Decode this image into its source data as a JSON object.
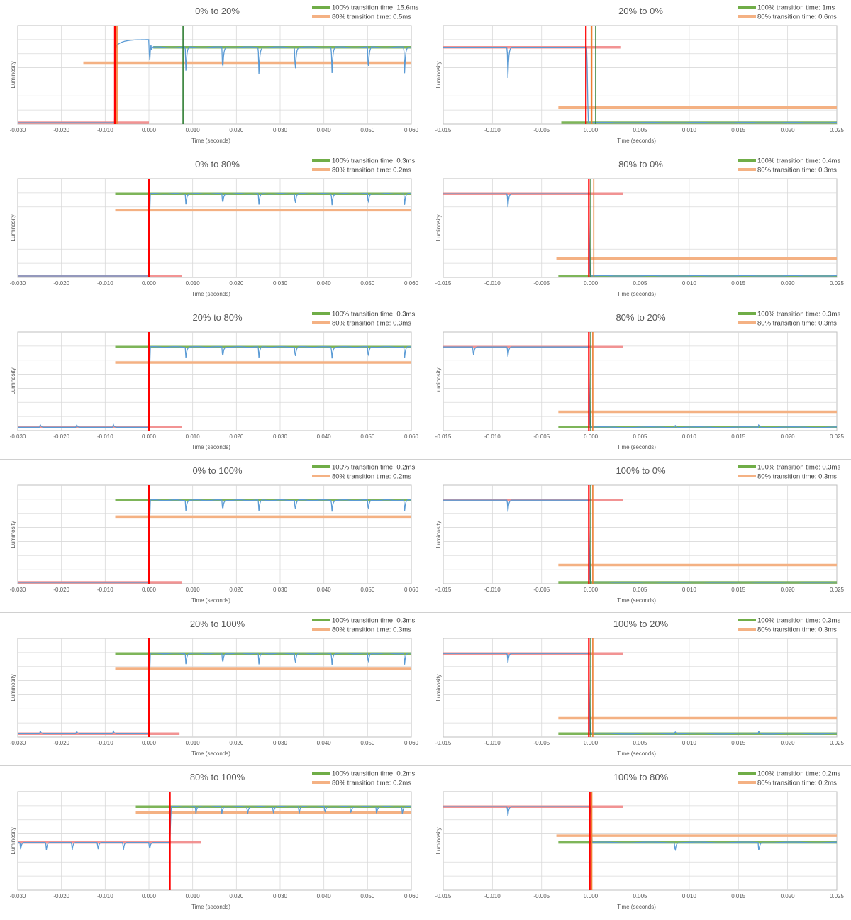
{
  "colors": {
    "measured": "#5b9bd5",
    "line100": "#70ad47",
    "line100dark": "#2e7d32",
    "line80": "#f4b183",
    "baseline": "#ff0000",
    "baseline_soft": "#f08080",
    "grid": "#d9d9d9",
    "frame": "#bfbfbf",
    "divider": "#d0d0d0"
  },
  "chart_data": [
    {
      "type": "line",
      "title": "0% to 20%",
      "xlabel": "Time (seconds)",
      "ylabel": "Luminosity",
      "xlim": [
        -0.03,
        0.06
      ],
      "xticks": [
        "-0.030",
        "-0.020",
        "-0.010",
        "0.000",
        "0.010",
        "0.020",
        "0.030",
        "0.040",
        "0.050",
        "0.060"
      ],
      "ylim": [
        0,
        1
      ],
      "legend": [
        {
          "name": "100% transition time: 15.6ms"
        },
        {
          "name": "80% transition time: 0.5ms"
        }
      ],
      "start_level": 0.0,
      "end_level": 0.78,
      "level80": 0.62,
      "start_line_end": 0.0,
      "target_line_start": 0.001,
      "level80_start": -0.015,
      "markers": [
        {
          "x": -0.0078,
          "color": "red"
        },
        {
          "x": -0.0073,
          "color": "orange"
        },
        {
          "x": 0.0078,
          "color": "darkgreen"
        }
      ],
      "transition_x": -0.0078,
      "overshoot": 0.08,
      "dips": [
        0.0,
        0.0083,
        0.0167,
        0.025,
        0.0333,
        0.0417,
        0.05,
        0.0583
      ],
      "dip_depth": 0.28
    },
    {
      "type": "line",
      "title": "20% to 0%",
      "xlabel": "Time (seconds)",
      "ylabel": "Luminosity",
      "xlim": [
        -0.015,
        0.025
      ],
      "xticks": [
        "-0.015",
        "-0.010",
        "-0.005",
        "0.000",
        "0.005",
        "0.010",
        "0.015",
        "0.020",
        "0.025"
      ],
      "ylim": [
        0,
        1
      ],
      "legend": [
        {
          "name": "100% transition time: 1ms"
        },
        {
          "name": "80% transition time: 0.6ms"
        }
      ],
      "start_level": 0.78,
      "end_level": 0.0,
      "level80": 0.16,
      "start_line_end": 0.003,
      "target_line_start": -0.003,
      "level80_start": -0.0033,
      "markers": [
        {
          "x": -0.0005,
          "color": "red"
        },
        {
          "x": 0.0001,
          "color": "orange"
        },
        {
          "x": 0.0005,
          "color": "darkgreen"
        }
      ],
      "transition_x": -0.0004,
      "overshoot": 0,
      "dips": [
        -0.0085
      ],
      "dip_depth": 0.32
    },
    {
      "type": "line",
      "title": "0% to 80%",
      "xlabel": "Time (seconds)",
      "ylabel": "Luminosity",
      "xlim": [
        -0.03,
        0.06
      ],
      "xticks": [
        "-0.030",
        "-0.020",
        "-0.010",
        "0.000",
        "0.010",
        "0.020",
        "0.030",
        "0.040",
        "0.050",
        "0.060"
      ],
      "ylim": [
        0,
        1
      ],
      "legend": [
        {
          "name": "100% transition time: 0.3ms"
        },
        {
          "name": "80% transition time: 0.2ms"
        }
      ],
      "start_level": 0.0,
      "end_level": 0.85,
      "level80": 0.68,
      "start_line_end": 0.0075,
      "target_line_start": -0.0077,
      "level80_start": -0.0077,
      "markers": [
        {
          "x": -0.0001,
          "color": "orange"
        },
        {
          "x": 0.0,
          "color": "red"
        }
      ],
      "transition_x": 0.0,
      "overshoot": 0,
      "dips": [
        0.0083,
        0.0167,
        0.025,
        0.0333,
        0.0417,
        0.05,
        0.0583
      ],
      "dip_depth": 0.12
    },
    {
      "type": "line",
      "title": "80% to 0%",
      "xlabel": "Time (seconds)",
      "ylabel": "Luminosity",
      "xlim": [
        -0.015,
        0.025
      ],
      "xticks": [
        "-0.015",
        "-0.010",
        "-0.005",
        "0.000",
        "0.005",
        "0.010",
        "0.015",
        "0.020",
        "0.025"
      ],
      "ylim": [
        0,
        1
      ],
      "legend": [
        {
          "name": "100% transition time: 0.4ms"
        },
        {
          "name": "80% transition time: 0.3ms"
        }
      ],
      "start_level": 0.85,
      "end_level": 0.0,
      "level80": 0.18,
      "start_line_end": 0.0033,
      "target_line_start": -0.0033,
      "level80_start": -0.0035,
      "markers": [
        {
          "x": -0.0002,
          "color": "red"
        },
        {
          "x": 0.0,
          "color": "darkgreen"
        },
        {
          "x": 0.0003,
          "color": "orange"
        }
      ],
      "transition_x": -0.0002,
      "overshoot": 0,
      "dips": [
        -0.0085
      ],
      "dip_depth": 0.14
    },
    {
      "type": "line",
      "title": "20% to 80%",
      "xlabel": "Time (seconds)",
      "ylabel": "Luminosity",
      "xlim": [
        -0.03,
        0.06
      ],
      "xticks": [
        "-0.030",
        "-0.020",
        "-0.010",
        "0.000",
        "0.010",
        "0.020",
        "0.030",
        "0.040",
        "0.050",
        "0.060"
      ],
      "ylim": [
        0,
        1
      ],
      "legend": [
        {
          "name": "100% transition time: 0.3ms"
        },
        {
          "name": "80% transition time: 0.3ms"
        }
      ],
      "start_level": 0.02,
      "end_level": 0.85,
      "level80": 0.69,
      "start_line_end": 0.0075,
      "target_line_start": -0.0077,
      "level80_start": -0.0077,
      "markers": [
        {
          "x": -0.0001,
          "color": "orange"
        },
        {
          "x": 0.0,
          "color": "red"
        }
      ],
      "transition_x": 0.0,
      "overshoot": 0,
      "dips": [
        -0.025,
        -0.0167,
        -0.0083,
        0.0083,
        0.0167,
        0.025,
        0.0333,
        0.0417,
        0.05,
        0.0583
      ],
      "dip_depth": 0.12
    },
    {
      "type": "line",
      "title": "80% to 20%",
      "xlabel": "Time (seconds)",
      "ylabel": "Luminosity",
      "xlim": [
        -0.015,
        0.025
      ],
      "xticks": [
        "-0.015",
        "-0.010",
        "-0.005",
        "0.000",
        "0.005",
        "0.010",
        "0.015",
        "0.020",
        "0.025"
      ],
      "ylim": [
        0,
        1
      ],
      "legend": [
        {
          "name": "100% transition time: 0.3ms"
        },
        {
          "name": "80% transition time: 0.3ms"
        }
      ],
      "start_level": 0.85,
      "end_level": 0.02,
      "level80": 0.18,
      "start_line_end": 0.0033,
      "target_line_start": -0.0033,
      "level80_start": -0.0033,
      "markers": [
        {
          "x": -0.0002,
          "color": "red"
        },
        {
          "x": 0.0,
          "color": "darkgreen"
        },
        {
          "x": 0.0002,
          "color": "orange"
        }
      ],
      "transition_x": -0.0002,
      "overshoot": 0,
      "dips": [
        -0.012,
        -0.0085,
        0.0085,
        0.017
      ],
      "dip_depth": 0.1
    },
    {
      "type": "line",
      "title": "0% to 100%",
      "xlabel": "Time (seconds)",
      "ylabel": "Luminosity",
      "xlim": [
        -0.03,
        0.06
      ],
      "xticks": [
        "-0.030",
        "-0.020",
        "-0.010",
        "0.000",
        "0.010",
        "0.020",
        "0.030",
        "0.040",
        "0.050",
        "0.060"
      ],
      "ylim": [
        0,
        1
      ],
      "legend": [
        {
          "name": "100% transition time: 0.2ms"
        },
        {
          "name": "80% transition time: 0.2ms"
        }
      ],
      "start_level": 0.0,
      "end_level": 0.85,
      "level80": 0.68,
      "start_line_end": 0.0075,
      "target_line_start": -0.0077,
      "level80_start": -0.0077,
      "markers": [
        {
          "x": -0.0001,
          "color": "orange"
        },
        {
          "x": 0.0,
          "color": "red"
        }
      ],
      "transition_x": 0.0,
      "overshoot": 0,
      "dips": [
        0.0083,
        0.0167,
        0.025,
        0.0333,
        0.0417,
        0.05,
        0.0583
      ],
      "dip_depth": 0.12
    },
    {
      "type": "line",
      "title": "100% to 0%",
      "xlabel": "Time (seconds)",
      "ylabel": "Luminosity",
      "xlim": [
        -0.015,
        0.025
      ],
      "xticks": [
        "-0.015",
        "-0.010",
        "-0.005",
        "0.000",
        "0.005",
        "0.010",
        "0.015",
        "0.020",
        "0.025"
      ],
      "ylim": [
        0,
        1
      ],
      "legend": [
        {
          "name": "100% transition time: 0.3ms"
        },
        {
          "name": "80% transition time: 0.3ms"
        }
      ],
      "start_level": 0.85,
      "end_level": 0.0,
      "level80": 0.18,
      "start_line_end": 0.0033,
      "target_line_start": -0.0033,
      "level80_start": -0.0033,
      "markers": [
        {
          "x": -0.0002,
          "color": "red"
        },
        {
          "x": 0.0,
          "color": "darkgreen"
        },
        {
          "x": 0.0002,
          "color": "orange"
        }
      ],
      "transition_x": -0.0002,
      "overshoot": 0,
      "dips": [
        -0.0085
      ],
      "dip_depth": 0.12
    },
    {
      "type": "line",
      "title": "20% to 100%",
      "xlabel": "Time (seconds)",
      "ylabel": "Luminosity",
      "xlim": [
        -0.03,
        0.06
      ],
      "xticks": [
        "-0.030",
        "-0.020",
        "-0.010",
        "0.000",
        "0.010",
        "0.020",
        "0.030",
        "0.040",
        "0.050",
        "0.060"
      ],
      "ylim": [
        0,
        1
      ],
      "legend": [
        {
          "name": "100% transition time: 0.3ms"
        },
        {
          "name": "80% transition time: 0.3ms"
        }
      ],
      "start_level": 0.02,
      "end_level": 0.85,
      "level80": 0.69,
      "start_line_end": 0.007,
      "target_line_start": -0.0077,
      "level80_start": -0.0077,
      "markers": [
        {
          "x": -0.0001,
          "color": "orange"
        },
        {
          "x": 0.0,
          "color": "red"
        }
      ],
      "transition_x": 0.0,
      "overshoot": 0,
      "dips": [
        -0.025,
        -0.0167,
        -0.0083,
        0.0083,
        0.0167,
        0.025,
        0.0333,
        0.0417,
        0.05,
        0.0583
      ],
      "dip_depth": 0.12
    },
    {
      "type": "line",
      "title": "100% to 20%",
      "xlabel": "Time (seconds)",
      "ylabel": "Luminosity",
      "xlim": [
        -0.015,
        0.025
      ],
      "xticks": [
        "-0.015",
        "-0.010",
        "-0.005",
        "0.000",
        "0.005",
        "0.010",
        "0.015",
        "0.020",
        "0.025"
      ],
      "ylim": [
        0,
        1
      ],
      "legend": [
        {
          "name": "100% transition time: 0.3ms"
        },
        {
          "name": "80% transition time: 0.3ms"
        }
      ],
      "start_level": 0.85,
      "end_level": 0.02,
      "level80": 0.18,
      "start_line_end": 0.0033,
      "target_line_start": -0.0033,
      "level80_start": -0.0033,
      "markers": [
        {
          "x": -0.0002,
          "color": "red"
        },
        {
          "x": 0.0,
          "color": "darkgreen"
        },
        {
          "x": 0.0002,
          "color": "orange"
        }
      ],
      "transition_x": -0.0002,
      "overshoot": 0,
      "dips": [
        -0.0085,
        0.0085,
        0.017
      ],
      "dip_depth": 0.1
    },
    {
      "type": "line",
      "title": "80% to 100%",
      "xlabel": "Time (seconds)",
      "ylabel": "Luminosity",
      "xlim": [
        -0.03,
        0.06
      ],
      "xticks": [
        "-0.030",
        "-0.020",
        "-0.010",
        "0.000",
        "0.010",
        "0.020",
        "0.030",
        "0.040",
        "0.050",
        "0.060"
      ],
      "ylim": [
        0,
        1
      ],
      "legend": [
        {
          "name": "100% transition time: 0.2ms"
        },
        {
          "name": "80% transition time: 0.2ms"
        }
      ],
      "start_level": 0.48,
      "end_level": 0.85,
      "level80": 0.79,
      "start_line_end": 0.012,
      "target_line_start": -0.003,
      "level80_start": -0.003,
      "markers": [
        {
          "x": 0.0047,
          "color": "orange"
        },
        {
          "x": 0.0048,
          "color": "red"
        }
      ],
      "transition_x": 0.0048,
      "overshoot": 0,
      "dips": [
        -0.0295,
        -0.0236,
        -0.0177,
        -0.0118,
        -0.006,
        0.0,
        0.0106,
        0.0165,
        0.0224,
        0.0283,
        0.0342,
        0.0401,
        0.046,
        0.0519,
        0.0578
      ],
      "dip_depth": 0.08
    },
    {
      "type": "line",
      "title": "100% to 80%",
      "xlabel": "Time (seconds)",
      "ylabel": "Luminosity",
      "xlim": [
        -0.015,
        0.025
      ],
      "xticks": [
        "-0.015",
        "-0.010",
        "-0.005",
        "0.000",
        "0.005",
        "0.010",
        "0.015",
        "0.020",
        "0.025"
      ],
      "ylim": [
        0,
        1
      ],
      "legend": [
        {
          "name": "100% transition time: 0.2ms"
        },
        {
          "name": "80% transition time: 0.2ms"
        }
      ],
      "start_level": 0.85,
      "end_level": 0.48,
      "level80": 0.55,
      "start_line_end": 0.0033,
      "target_line_start": -0.0033,
      "level80_start": -0.0035,
      "markers": [
        {
          "x": -0.0001,
          "color": "red"
        },
        {
          "x": 0.0001,
          "color": "orange"
        }
      ],
      "transition_x": 0.0,
      "overshoot": 0,
      "dips": [
        -0.0085,
        0.0085,
        0.017
      ],
      "dip_depth": 0.1
    }
  ]
}
